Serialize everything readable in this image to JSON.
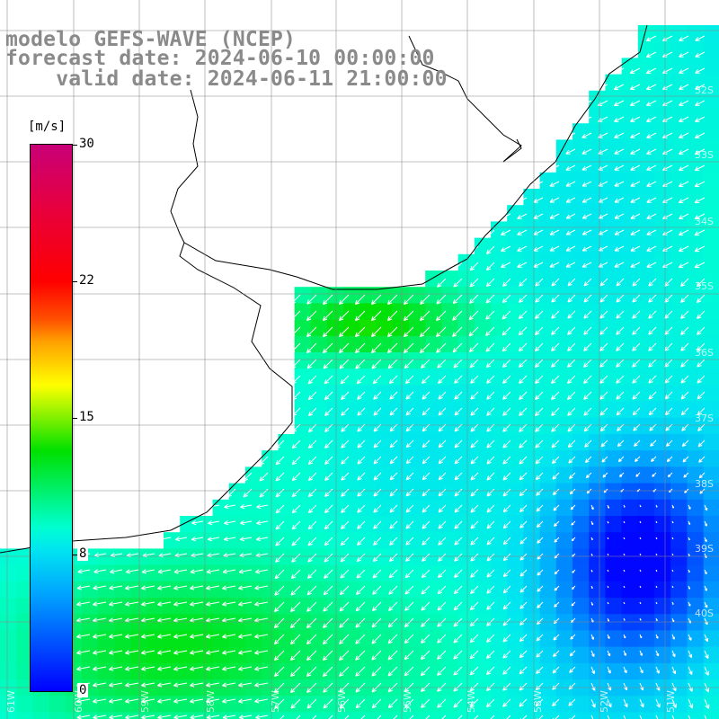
{
  "header": {
    "line1": "modelo GEFS-WAVE (NCEP)",
    "line2": "forecast date: 2024-06-10 00:00:00",
    "line3": "    valid date: 2024-06-11 21:00:00"
  },
  "colorbar": {
    "units": "[m/s]",
    "ticks": [
      "30",
      "22",
      "15",
      "8",
      "0"
    ],
    "stops": [
      "#0000ff",
      "#00a6ff",
      "#00e6f0",
      "#00ffd0",
      "#00e000",
      "#80f000",
      "#ffff00",
      "#ffa000",
      "#ff5000",
      "#ff0000",
      "#e8003c",
      "#c80078"
    ],
    "range": [
      0,
      30
    ]
  },
  "map": {
    "lat_labels": [
      "32S",
      "33S",
      "34S",
      "35S",
      "36S",
      "37S",
      "38S",
      "39S",
      "40S"
    ],
    "lon_labels": [
      "61W",
      "60W",
      "59W",
      "58W",
      "57W",
      "56W",
      "55W",
      "54W",
      "53W",
      "52W",
      "51W"
    ],
    "grid_color": "#ffffff",
    "land_color": "#ffffff",
    "coast_color": "#000000",
    "arrow_color": "#ffffff"
  }
}
